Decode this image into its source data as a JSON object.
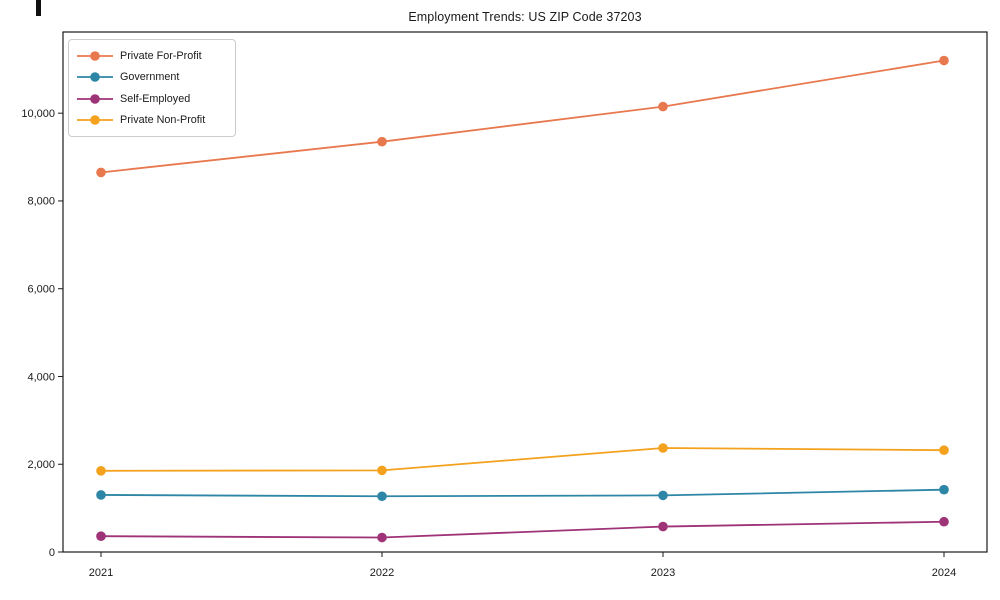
{
  "chart_data": {
    "type": "line",
    "title": "Employment Trends: US ZIP Code 37203",
    "xlabel": "",
    "ylabel": "",
    "categories": [
      "2021",
      "2022",
      "2023",
      "2024"
    ],
    "series": [
      {
        "name": "Private For-Profit",
        "color": "#e8784e",
        "values": [
          8650,
          9350,
          10150,
          11200
        ]
      },
      {
        "name": "Government",
        "color": "#2e86a6",
        "values": [
          1300,
          1270,
          1290,
          1420
        ]
      },
      {
        "name": "Self-Employed",
        "color": "#9e3377",
        "values": [
          360,
          330,
          580,
          690
        ]
      },
      {
        "name": "Private Non-Profit",
        "color": "#f4a11d",
        "values": [
          1850,
          1860,
          2370,
          2320
        ]
      }
    ],
    "y_ticks": [
      0,
      2000,
      4000,
      6000,
      8000,
      10000
    ],
    "y_tick_labels": [
      "0",
      "2,000",
      "4,000",
      "6,000",
      "8,000",
      "10,000"
    ],
    "ylim": [
      0,
      11850
    ],
    "grid": false,
    "legend_position": "upper left",
    "marker": "circle",
    "frame_color": "#1a1a1a"
  }
}
